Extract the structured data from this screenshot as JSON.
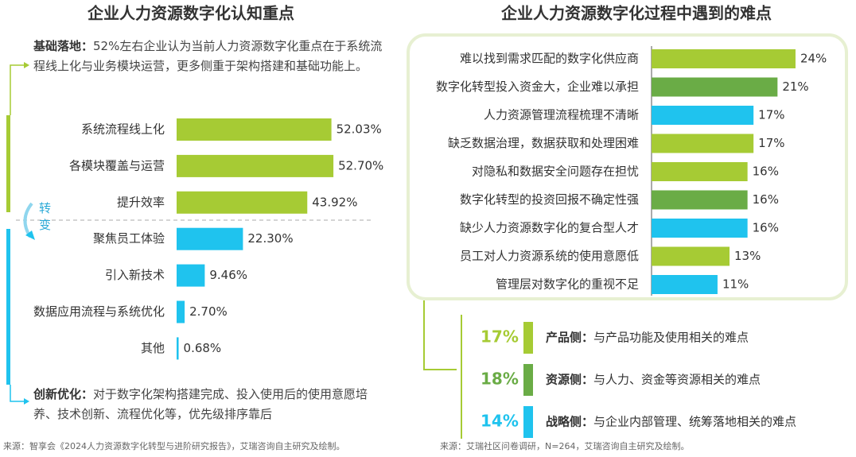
{
  "chart_data": [
    {
      "type": "hbar",
      "title": "企业人力资源数字化认知重点",
      "categories": [
        "系统流程线上化",
        "各模块覆盖与运营",
        "提升效率",
        "聚焦员工体验",
        "引入新技术",
        "数据应用流程与系统优化",
        "其他"
      ],
      "values": [
        52.03,
        52.7,
        43.92,
        22.3,
        9.46,
        2.7,
        0.68
      ],
      "value_labels": [
        "52.03%",
        "52.70%",
        "43.92%",
        "22.30%",
        "9.46%",
        "2.70%",
        "0.68%"
      ],
      "colors": [
        "#a6cb34",
        "#a6cb34",
        "#a6cb34",
        "#1fc3ee",
        "#1fc3ee",
        "#1fc3ee",
        "#1fc3ee"
      ],
      "annotations": [
        {
          "label": "基础落地：",
          "text": "52%左右企业认为当前人力资源数字化重点在于系统流程线上化与业务模块运营，更多侧重于架构搭建和基础功能上。"
        },
        {
          "label": "创新优化：",
          "text": "对于数字化架构搭建完成、投入使用后的使用意愿培养、技术创新、流程优化等，优先级排序靠后"
        }
      ],
      "transition_label": "转变",
      "source": "来源：智享会《2024人力资源数字化转型与进阶研究报告》，艾瑞咨询自主研究及绘制。"
    },
    {
      "type": "hbar",
      "title": "企业人力资源数字化过程中遇到的难点",
      "categories": [
        "难以找到需求匹配的数字化供应商",
        "数字化转型投入资金大，企业难以承担",
        "人力资源管理流程梳理不清晰",
        "缺乏数据治理，数据获取和处理困难",
        "对隐私和数据安全问题存在担忧",
        "数字化转型的投资回报不确定性强",
        "缺少人力资源数字化的复合型人才",
        "员工对人力资源系统的使用意愿低",
        "管理层对数字化的重视不足"
      ],
      "values": [
        24,
        21,
        17,
        17,
        16,
        16,
        16,
        13,
        11
      ],
      "value_labels": [
        "24%",
        "21%",
        "17%",
        "17%",
        "16%",
        "16%",
        "16%",
        "13%",
        "11%"
      ],
      "colors": [
        "#a6cb34",
        "#6aac46",
        "#1fc3ee",
        "#a6cb34",
        "#a6cb34",
        "#6aac46",
        "#1fc3ee",
        "#a6cb34",
        "#1fc3ee"
      ],
      "groups": [
        {
          "name": "产品侧：",
          "description": "与产品功能及使用相关的难点",
          "value": 17,
          "value_label": "17%",
          "color": "#a6cb34"
        },
        {
          "name": "资源侧：",
          "description": "与人力、资金等资源相关的难点",
          "value": 18,
          "value_label": "18%",
          "color": "#6aac46"
        },
        {
          "name": "战略侧：",
          "description": "与企业内部管理、统筹落地相关的难点",
          "value": 14,
          "value_label": "14%",
          "color": "#1fc3ee"
        }
      ],
      "source": "来源：艾瑞社区问卷调研，N=264，艾瑞咨询自主研究及绘制。"
    }
  ]
}
